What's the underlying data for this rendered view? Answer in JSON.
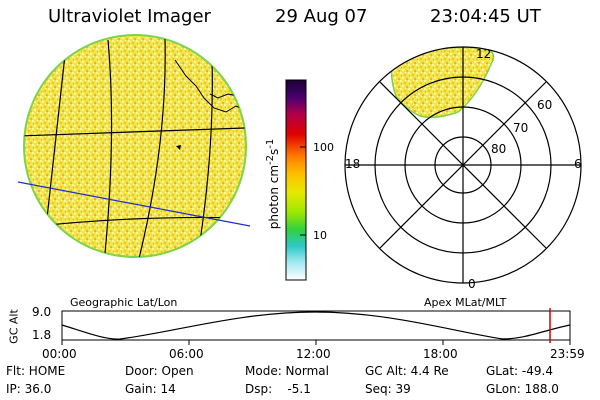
{
  "header": {
    "title": "Ultraviolet Imager",
    "date": "29 Aug 07",
    "time": "23:04:45 UT"
  },
  "colorbar": {
    "label_html": "photon cm<sup>-2</sup>s<sup>-1</sup>",
    "ticks": [
      "100",
      "10"
    ]
  },
  "panels": {
    "geo_label": "Geographic Lat/Lon",
    "apex_label": "Apex MLat/MLT"
  },
  "polar": {
    "mlt_labels": {
      "top": "12",
      "left": "18",
      "right": "6",
      "bottom": "0"
    },
    "mlat_labels": [
      "60",
      "70",
      "80"
    ]
  },
  "timeline": {
    "axis_title": "GC Alt",
    "y_max": "9.0",
    "y_min": "1.8",
    "x_ticks": [
      "00:00",
      "06:00",
      "12:00",
      "18:00",
      "23:59"
    ]
  },
  "status": {
    "flt": "Flt: HOME",
    "ip": "IP: 36.0",
    "door": "Door: Open",
    "gain": "Gain: 14",
    "mode": "Mode: Normal",
    "dsp": "Dsp:    -5.1",
    "gcalt": "GC Alt: 4.4 Re",
    "seq": "Seq: 39",
    "glat": "GLat: -49.4",
    "glon": "GLon: 188.0"
  },
  "colors": {
    "disk_fill": "#f2e04a",
    "grid_line": "#000000",
    "marker_red": "#d00000",
    "limb": "#7fd34a"
  }
}
